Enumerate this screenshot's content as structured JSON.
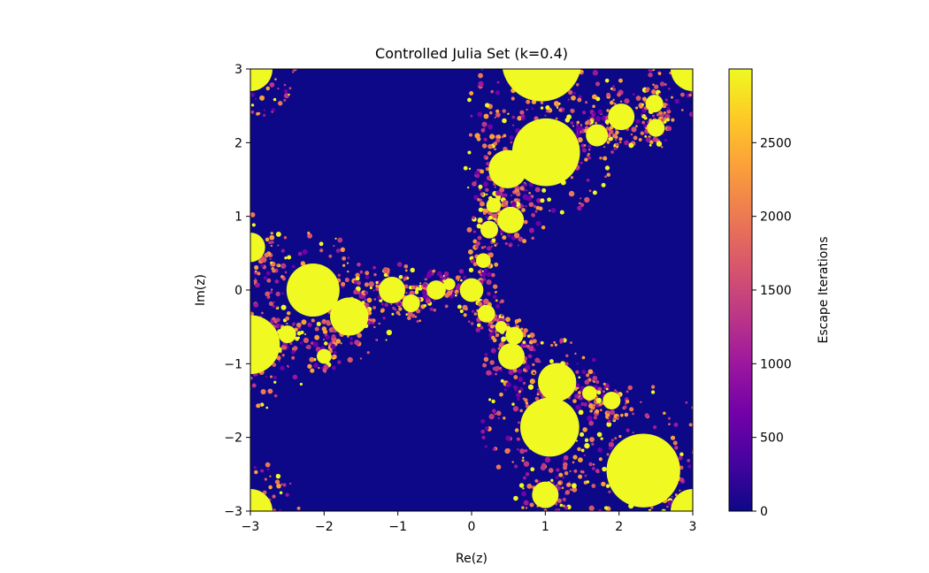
{
  "chart_data": {
    "type": "heatmap",
    "title": "Controlled Julia Set (k=0.4)",
    "xlabel": "Re(z)",
    "ylabel": "Im(z)",
    "xlim": [
      -3,
      3
    ],
    "ylim": [
      -3,
      3
    ],
    "xticks": [
      "−3",
      "−2",
      "−1",
      "0",
      "1",
      "2",
      "3"
    ],
    "yticks": [
      "−3",
      "−2",
      "−1",
      "0",
      "1",
      "2",
      "3"
    ],
    "xtick_values": [
      -3,
      -2,
      -1,
      0,
      1,
      2,
      3
    ],
    "ytick_values": [
      -3,
      -2,
      -1,
      0,
      1,
      2,
      3
    ],
    "colorbar": {
      "label": "Escape Iterations",
      "range": [
        0,
        3000
      ],
      "ticks": [
        0,
        500,
        1000,
        1500,
        2000,
        2500
      ],
      "tick_labels": [
        "0",
        "500",
        "1000",
        "1500",
        "2000",
        "2500"
      ],
      "colormap": "plasma"
    },
    "colormap_stops": [
      "#0d0887",
      "#46039f",
      "#7201a8",
      "#9c179e",
      "#bd3786",
      "#d8576b",
      "#ed7953",
      "#fb9f3a",
      "#fdca26",
      "#f0f921"
    ],
    "background_color": "#0d0887",
    "set_color": "#f0f921",
    "discs": [
      [
        0.95,
        3.1,
        0.54
      ],
      [
        1.01,
        1.87,
        0.46
      ],
      [
        0.49,
        1.64,
        0.26
      ],
      [
        0.53,
        0.95,
        0.18
      ],
      [
        0.24,
        0.82,
        0.12
      ],
      [
        0,
        0,
        0.16
      ],
      [
        -0.48,
        0,
        0.13
      ],
      [
        -1.08,
        0,
        0.18
      ],
      [
        -0.82,
        -0.18,
        0.12
      ],
      [
        -2.15,
        0,
        0.36
      ],
      [
        -1.66,
        -0.36,
        0.26
      ],
      [
        -3,
        -0.74,
        0.4
      ],
      [
        -3,
        0.58,
        0.2
      ],
      [
        0.2,
        -0.32,
        0.12
      ],
      [
        0.54,
        -0.9,
        0.18
      ],
      [
        0.58,
        -0.62,
        0.12
      ],
      [
        1.16,
        -1.25,
        0.26
      ],
      [
        1.06,
        -1.86,
        0.4
      ],
      [
        2.33,
        -2.45,
        0.5
      ],
      [
        2.03,
        2.35,
        0.18
      ],
      [
        2.48,
        2.53,
        0.12
      ],
      [
        1.0,
        -2.78,
        0.18
      ],
      [
        -3,
        3,
        0.3
      ],
      [
        3,
        3,
        0.3
      ],
      [
        -3,
        -3,
        0.3
      ],
      [
        3,
        -3,
        0.3
      ],
      [
        0.16,
        0.4,
        0.1
      ],
      [
        0.3,
        1.15,
        0.1
      ],
      [
        1.7,
        2.1,
        0.15
      ],
      [
        2.5,
        2.2,
        0.12
      ],
      [
        -2.5,
        -0.6,
        0.12
      ],
      [
        -2.0,
        -0.9,
        0.1
      ],
      [
        1.9,
        -1.5,
        0.12
      ],
      [
        1.6,
        -1.4,
        0.1
      ],
      [
        0.4,
        -0.5,
        0.08
      ],
      [
        -0.3,
        0.08,
        0.08
      ]
    ]
  }
}
